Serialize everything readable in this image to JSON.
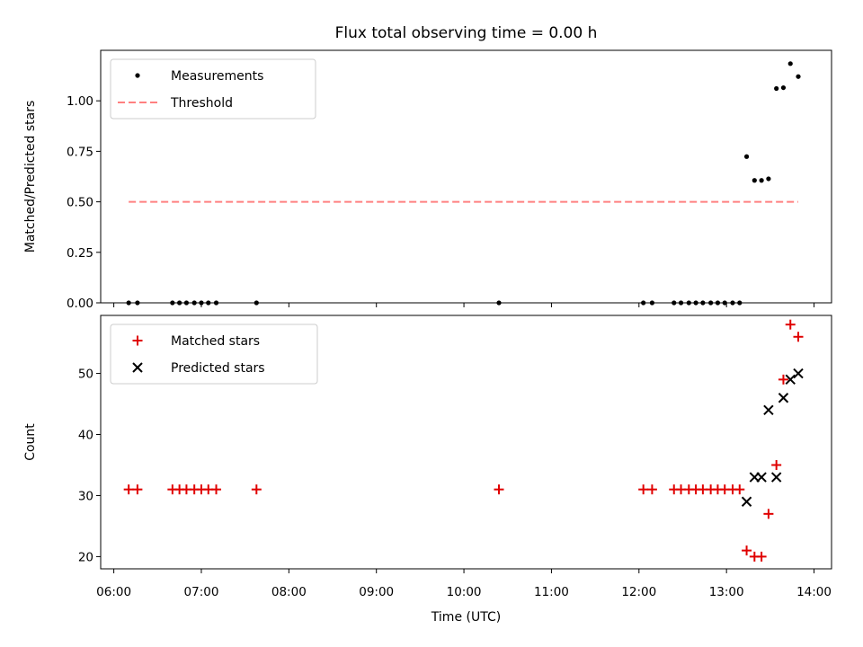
{
  "chart_data": {
    "title": "Flux total observing time = 0.00 h",
    "xlabel": "Time (UTC)",
    "x_unit": "hours (UTC)",
    "xlim": [
      5.85,
      14.2
    ],
    "xticks": [
      {
        "value": 6,
        "label": "06:00"
      },
      {
        "value": 7,
        "label": "07:00"
      },
      {
        "value": 8,
        "label": "08:00"
      },
      {
        "value": 9,
        "label": "09:00"
      },
      {
        "value": 10,
        "label": "10:00"
      },
      {
        "value": 11,
        "label": "11:00"
      },
      {
        "value": 12,
        "label": "12:00"
      },
      {
        "value": 13,
        "label": "13:00"
      },
      {
        "value": 14,
        "label": "14:00"
      }
    ],
    "panels": [
      {
        "type": "scatter",
        "ylabel": "Matched/Predicted stars",
        "ylim": [
          0,
          1.25
        ],
        "yticks": [
          "0.00",
          "0.25",
          "0.50",
          "0.75",
          "1.00"
        ],
        "legend_position": "upper-left",
        "series": [
          {
            "name": "Measurements",
            "kind": "scatter",
            "marker": "dot",
            "color": "#000000",
            "x": [
              6.17,
              6.27,
              6.67,
              6.75,
              6.83,
              6.92,
              7.0,
              7.08,
              7.17,
              7.63,
              10.4,
              12.05,
              12.15,
              12.4,
              12.48,
              12.57,
              12.65,
              12.73,
              12.82,
              12.9,
              12.98,
              13.07,
              13.15,
              13.23,
              13.32,
              13.4,
              13.48,
              13.57,
              13.65,
              13.73,
              13.82
            ],
            "y": [
              0,
              0,
              0,
              0,
              0,
              0,
              0,
              0,
              0,
              0,
              0,
              0,
              0,
              0,
              0,
              0,
              0,
              0,
              0,
              0,
              0,
              0,
              0,
              0.724,
              0.606,
              0.606,
              0.614,
              1.061,
              1.065,
              1.184,
              1.12
            ]
          },
          {
            "name": "Threshold",
            "kind": "line",
            "style": "dashed",
            "color": "#ff8080",
            "x": [
              6.17,
              13.82
            ],
            "y": [
              0.5,
              0.5
            ]
          }
        ]
      },
      {
        "type": "scatter",
        "ylabel": "Count",
        "ylim": [
          18,
          59.5
        ],
        "yticks": [
          "20",
          "30",
          "40",
          "50"
        ],
        "legend_position": "upper-left",
        "series": [
          {
            "name": "Matched stars",
            "kind": "scatter",
            "marker": "plus",
            "color": "#e00000",
            "x": [
              6.17,
              6.27,
              6.67,
              6.75,
              6.83,
              6.92,
              7.0,
              7.08,
              7.17,
              7.63,
              10.4,
              12.05,
              12.15,
              12.4,
              12.48,
              12.57,
              12.65,
              12.73,
              12.82,
              12.9,
              12.98,
              13.07,
              13.15,
              13.23,
              13.32,
              13.4,
              13.48,
              13.57,
              13.65,
              13.73,
              13.82
            ],
            "y": [
              31,
              31,
              31,
              31,
              31,
              31,
              31,
              31,
              31,
              31,
              31,
              31,
              31,
              31,
              31,
              31,
              31,
              31,
              31,
              31,
              31,
              31,
              31,
              21,
              20,
              20,
              27,
              35,
              49,
              58,
              56
            ]
          },
          {
            "name": "Predicted stars",
            "kind": "scatter",
            "marker": "x",
            "color": "#000000",
            "x": [
              13.23,
              13.32,
              13.4,
              13.48,
              13.57,
              13.65,
              13.73,
              13.82
            ],
            "y": [
              29,
              33,
              33,
              44,
              33,
              46,
              49,
              50
            ]
          }
        ]
      }
    ]
  }
}
